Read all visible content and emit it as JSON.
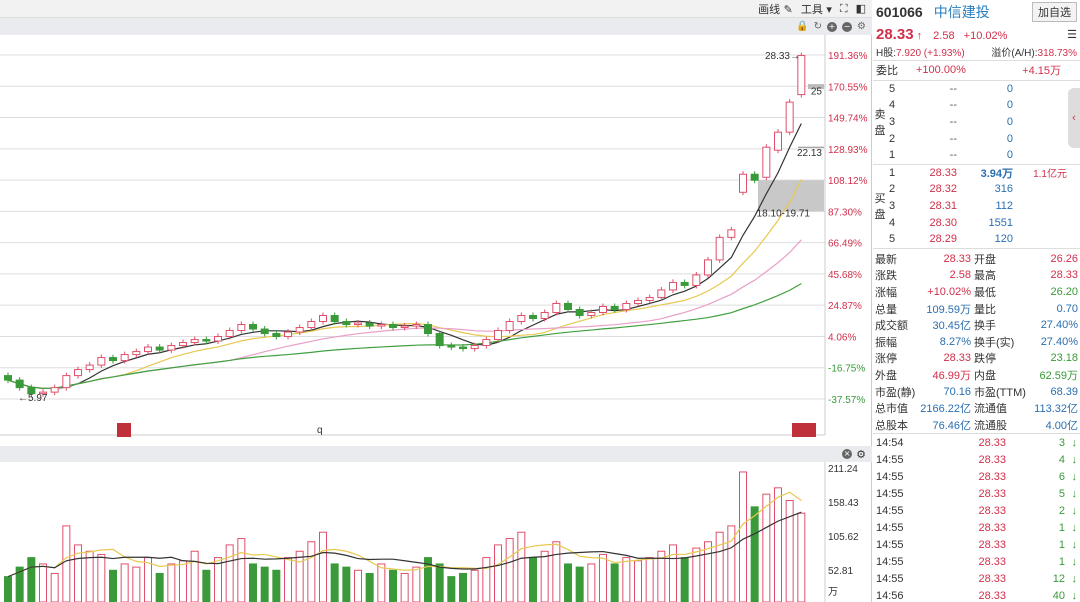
{
  "toolbar": {
    "draw_label": "画线",
    "tools_label": "工具"
  },
  "chart": {
    "high_label": "28.33→",
    "low_label": "←5.97",
    "right_label_25": "25",
    "label_22": "22.13",
    "zone_label": "18.10-19.71",
    "mid_marker": "q",
    "axis_ticks": [
      "191.36%",
      "170.55%",
      "149.74%",
      "128.93%",
      "108.12%",
      "87.30%",
      "66.49%",
      "45.68%",
      "24.87%",
      "4.06%",
      "-16.75%",
      "-37.57%"
    ],
    "vol_ticks": [
      "211.24",
      "158.43",
      "105.62",
      "52.81"
    ],
    "vol_unit": "万",
    "colors": {
      "up": "#e0506c",
      "down": "#3a9a3a",
      "ma5": "#333333",
      "ma10": "#e8c850",
      "ma20": "#e8a0c8",
      "ma60": "#40a040"
    }
  },
  "chart_data": {
    "type": "candlestick",
    "ylim": [
      -37.57,
      191.36
    ],
    "y_unit": "%",
    "candles": [
      [
        -22,
        -25
      ],
      [
        -25,
        -30
      ],
      [
        -30,
        -34
      ],
      [
        -34,
        -33
      ],
      [
        -33,
        -30
      ],
      [
        -30,
        -22
      ],
      [
        -22,
        -18
      ],
      [
        -18,
        -15
      ],
      [
        -15,
        -10
      ],
      [
        -10,
        -12
      ],
      [
        -12,
        -8
      ],
      [
        -8,
        -6
      ],
      [
        -6,
        -3
      ],
      [
        -3,
        -5
      ],
      [
        -5,
        -2
      ],
      [
        -2,
        0
      ],
      [
        0,
        2
      ],
      [
        2,
        1
      ],
      [
        1,
        4
      ],
      [
        4,
        8
      ],
      [
        8,
        12
      ],
      [
        12,
        9
      ],
      [
        9,
        6
      ],
      [
        6,
        4
      ],
      [
        4,
        7
      ],
      [
        7,
        10
      ],
      [
        10,
        14
      ],
      [
        14,
        18
      ],
      [
        18,
        14
      ],
      [
        14,
        12
      ],
      [
        12,
        13
      ],
      [
        13,
        11
      ],
      [
        11,
        12
      ],
      [
        12,
        10
      ],
      [
        10,
        11
      ],
      [
        11,
        12
      ],
      [
        12,
        6
      ],
      [
        6,
        -2
      ],
      [
        -2,
        -3
      ],
      [
        -3,
        -4
      ],
      [
        -4,
        -2
      ],
      [
        -2,
        2
      ],
      [
        2,
        8
      ],
      [
        8,
        14
      ],
      [
        14,
        18
      ],
      [
        18,
        16
      ],
      [
        16,
        20
      ],
      [
        20,
        26
      ],
      [
        26,
        22
      ],
      [
        22,
        18
      ],
      [
        18,
        20
      ],
      [
        20,
        24
      ],
      [
        24,
        22
      ],
      [
        22,
        26
      ],
      [
        26,
        28
      ],
      [
        28,
        30
      ],
      [
        30,
        35
      ],
      [
        35,
        40
      ],
      [
        40,
        38
      ],
      [
        38,
        45
      ],
      [
        45,
        55
      ],
      [
        55,
        70
      ],
      [
        70,
        75
      ],
      [
        100,
        112
      ],
      [
        112,
        108
      ],
      [
        110,
        130
      ],
      [
        128,
        140
      ],
      [
        140,
        160
      ],
      [
        165,
        191
      ]
    ],
    "volume": [
      40,
      55,
      70,
      60,
      45,
      120,
      90,
      80,
      75,
      50,
      60,
      55,
      70,
      45,
      60,
      65,
      80,
      50,
      70,
      90,
      100,
      60,
      55,
      50,
      70,
      80,
      95,
      110,
      60,
      55,
      50,
      45,
      60,
      50,
      45,
      55,
      70,
      60,
      40,
      45,
      50,
      70,
      90,
      100,
      110,
      70,
      80,
      95,
      60,
      55,
      60,
      75,
      60,
      70,
      65,
      70,
      80,
      90,
      70,
      85,
      95,
      110,
      120,
      205,
      150,
      170,
      180,
      160,
      140
    ]
  },
  "stock": {
    "code": "601066",
    "name": "中信建投",
    "add_fav": "加自选",
    "price": "28.33",
    "change": "2.58",
    "change_pct": "+10.02%",
    "h_label": "H股:",
    "h_value": "7.920 (+1.93%)",
    "premium_label": "溢价(A/H):",
    "premium_value": "318.73%",
    "wb_label": "委比",
    "wb_pct": "+100.00%",
    "wb_diff": "+4.15万"
  },
  "orderbook": {
    "sell_label": [
      "卖",
      "盘"
    ],
    "buy_label": [
      "买",
      "盘"
    ],
    "sell": [
      [
        "5",
        "--",
        "0"
      ],
      [
        "4",
        "--",
        "0"
      ],
      [
        "3",
        "--",
        "0"
      ],
      [
        "2",
        "--",
        "0"
      ],
      [
        "1",
        "--",
        "0"
      ]
    ],
    "buy": [
      [
        "1",
        "28.33",
        "3.94万",
        "1.1亿元"
      ],
      [
        "2",
        "28.32",
        "316",
        ""
      ],
      [
        "3",
        "28.31",
        "112",
        ""
      ],
      [
        "4",
        "28.30",
        "1551",
        ""
      ],
      [
        "5",
        "28.29",
        "120",
        ""
      ]
    ]
  },
  "stats": [
    [
      "最新",
      "28.33",
      "开盘",
      "26.26"
    ],
    [
      "涨跌",
      "2.58",
      "最高",
      "28.33"
    ],
    [
      "涨幅",
      "+10.02%",
      "最低",
      "26.20"
    ],
    [
      "总量",
      "109.59万",
      "量比",
      "0.70"
    ],
    [
      "成交额",
      "30.45亿",
      "换手",
      "27.40%"
    ],
    [
      "振幅",
      "8.27%",
      "换手(实)",
      "27.40%"
    ],
    [
      "涨停",
      "28.33",
      "跌停",
      "23.18"
    ],
    [
      "外盘",
      "46.99万",
      "内盘",
      "62.59万"
    ],
    [
      "市盈(静)",
      "70.16",
      "市盈(TTM)",
      "68.39"
    ],
    [
      "总市值",
      "2166.22亿",
      "流通值",
      "113.32亿"
    ],
    [
      "总股本",
      "76.46亿",
      "流通股",
      "4.00亿"
    ]
  ],
  "ticks": [
    [
      "14:54",
      "28.33",
      "3"
    ],
    [
      "14:55",
      "28.33",
      "4"
    ],
    [
      "14:55",
      "28.33",
      "6"
    ],
    [
      "14:55",
      "28.33",
      "5"
    ],
    [
      "14:55",
      "28.33",
      "2"
    ],
    [
      "14:55",
      "28.33",
      "1"
    ],
    [
      "14:55",
      "28.33",
      "1"
    ],
    [
      "14:55",
      "28.33",
      "1"
    ],
    [
      "14:55",
      "28.33",
      "12"
    ],
    [
      "14:56",
      "28.33",
      "40"
    ]
  ]
}
